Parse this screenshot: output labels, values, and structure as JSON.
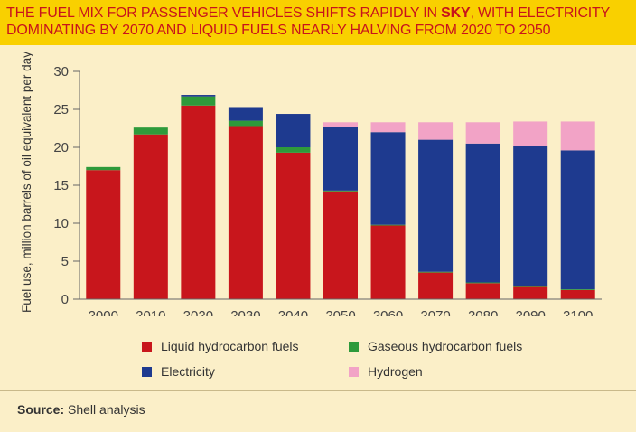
{
  "header": {
    "title_part1": "THE FUEL MIX FOR PASSENGER VEHICLES SHIFTS RAPIDLY IN ",
    "title_emphasis": "SKY",
    "title_part2": ", WITH ELECTRICITY",
    "title_line2": "DOMINATING BY 2070 AND LIQUID FUELS NEARLY HALVING FROM 2020 TO 2050"
  },
  "source": {
    "label": "Source:",
    "text": " Shell analysis"
  },
  "colors": {
    "background": "#fbefc8",
    "header": "#f9d000",
    "title": "#c8141b",
    "liquid": "#c8161c",
    "gaseous": "#2e9a3b",
    "electricity": "#1e3a8f",
    "hydrogen": "#f2a3c6"
  },
  "chart_data": {
    "type": "bar",
    "stacked": true,
    "title": "",
    "xlabel": "",
    "ylabel": "Fuel use, million barrels of oil equivalent per day",
    "ylim": [
      0,
      30
    ],
    "yticks": [
      0,
      5,
      10,
      15,
      20,
      25,
      30
    ],
    "grid": false,
    "legend_position": "bottom",
    "categories": [
      "2000",
      "2010",
      "2020",
      "2030",
      "2040",
      "2050",
      "2060",
      "2070",
      "2080",
      "2090",
      "2100"
    ],
    "series": [
      {
        "name": "Liquid hydrocarbon fuels",
        "color": "#c8161c",
        "values": [
          17.0,
          21.7,
          25.5,
          22.8,
          19.3,
          14.2,
          9.7,
          3.5,
          2.1,
          1.6,
          1.2
        ]
      },
      {
        "name": "Gaseous hydrocarbon fuels",
        "color": "#2e9a3b",
        "values": [
          0.4,
          0.9,
          1.2,
          0.7,
          0.7,
          0.1,
          0.1,
          0.1,
          0.1,
          0.1,
          0.1
        ]
      },
      {
        "name": "Electricity",
        "color": "#1e3a8f",
        "values": [
          0.0,
          0.0,
          0.2,
          1.8,
          4.4,
          8.4,
          12.2,
          17.4,
          18.3,
          18.5,
          18.3
        ]
      },
      {
        "name": "Hydrogen",
        "color": "#f2a3c6",
        "values": [
          0.0,
          0.0,
          0.0,
          0.0,
          0.0,
          0.6,
          1.3,
          2.3,
          2.8,
          3.2,
          3.8
        ]
      }
    ]
  }
}
